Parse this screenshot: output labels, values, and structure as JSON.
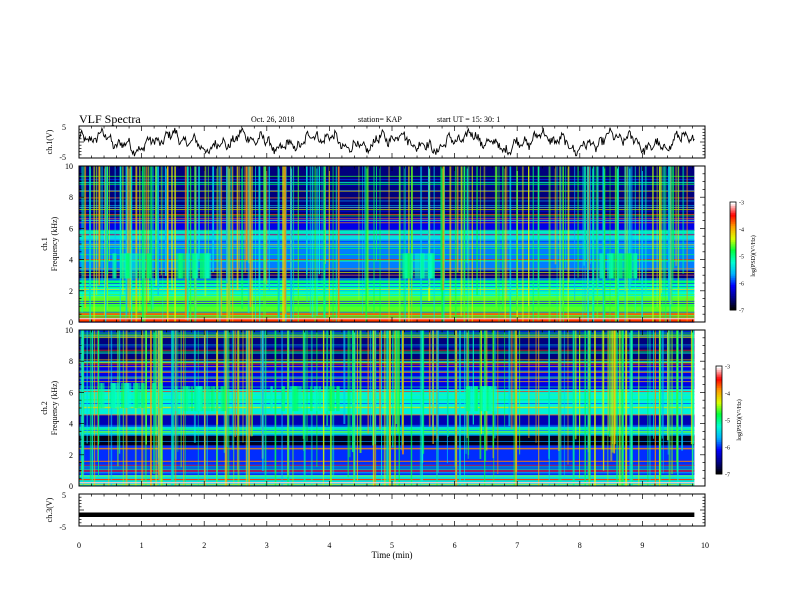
{
  "header": {
    "title": "VLF Spectra",
    "date": "Oct. 26, 2018",
    "station": "station= KAP",
    "start": "start  UT =   15: 30: 1"
  },
  "chart_data": [
    {
      "type": "line",
      "name": "ch.1 waveform",
      "ylabel": "ch.1(V)",
      "ylim": [
        -5,
        5
      ],
      "yticks": [
        "5",
        "-5"
      ],
      "xlim": [
        0,
        10
      ],
      "x_end": 9.83,
      "color": "#000000"
    },
    {
      "type": "heatmap",
      "name": "ch.1 spectrogram",
      "ylabel": "ch.1\nFrequency (kHz)",
      "ylim": [
        0,
        10
      ],
      "yticks": [
        "0",
        "2",
        "4",
        "6",
        "8",
        "10"
      ],
      "xlim": [
        0,
        10
      ],
      "x_end": 9.83,
      "bands_khz": [
        {
          "y0": 0.0,
          "y1": 0.6,
          "level": -3.6
        },
        {
          "y0": 0.6,
          "y1": 1.6,
          "level": -4.6
        },
        {
          "y0": 1.6,
          "y1": 2.4,
          "level": -5.2
        },
        {
          "y0": 2.4,
          "y1": 2.8,
          "level": -5.0
        },
        {
          "y0": 2.8,
          "y1": 3.3,
          "level": -6.6
        },
        {
          "y0": 3.3,
          "y1": 5.3,
          "level": -5.8
        },
        {
          "y0": 5.3,
          "y1": 5.9,
          "level": -5.4
        },
        {
          "y0": 5.9,
          "y1": 6.7,
          "level": -6.2
        },
        {
          "y0": 6.7,
          "y1": 10.0,
          "level": -6.6
        }
      ],
      "colorbar": {
        "label": "log(PSD)(V²/Hz)",
        "range": [
          -7,
          -3
        ],
        "ticks": [
          "-3",
          "-4",
          "-5",
          "-6",
          "-7"
        ]
      }
    },
    {
      "type": "heatmap",
      "name": "ch.2 spectrogram",
      "ylabel": "ch.2\nFrequency (kHz)",
      "ylim": [
        0,
        10
      ],
      "yticks": [
        "0",
        "2",
        "4",
        "6",
        "8",
        "10"
      ],
      "xlim": [
        0,
        10
      ],
      "x_end": 9.83,
      "bands_khz": [
        {
          "y0": 0.0,
          "y1": 0.7,
          "level": -5.4
        },
        {
          "y0": 0.7,
          "y1": 2.6,
          "level": -6.0
        },
        {
          "y0": 2.6,
          "y1": 3.3,
          "level": -6.9
        },
        {
          "y0": 3.3,
          "y1": 3.8,
          "level": -5.4
        },
        {
          "y0": 3.8,
          "y1": 4.6,
          "level": -6.4
        },
        {
          "y0": 4.6,
          "y1": 6.2,
          "level": -5.3
        },
        {
          "y0": 6.2,
          "y1": 7.8,
          "level": -6.2
        },
        {
          "y0": 7.8,
          "y1": 10.0,
          "level": -6.6
        }
      ],
      "colorbar": {
        "label": "log(PSD)(V²/Hz)",
        "range": [
          -7,
          -3
        ],
        "ticks": [
          "-3",
          "-4",
          "-5",
          "-6",
          "-7"
        ]
      }
    },
    {
      "type": "line",
      "name": "ch.3 waveform",
      "ylabel": "ch.3(V)",
      "ylim": [
        -5,
        5
      ],
      "yticks": [
        "5",
        "-5"
      ],
      "xlim": [
        0,
        10
      ],
      "x_end": 9.83,
      "constant_value": -1.5,
      "color": "#000000"
    }
  ],
  "x_axis": {
    "label": "Time (min)",
    "ticks": [
      "0",
      "1",
      "2",
      "3",
      "4",
      "5",
      "6",
      "7",
      "8",
      "9",
      "10"
    ]
  },
  "colormap": [
    "#000000",
    "#00008b",
    "#0000ff",
    "#00b4ff",
    "#00ffd2",
    "#00ff3c",
    "#dcff00",
    "#ffa000",
    "#ff0000",
    "#ffffff"
  ]
}
